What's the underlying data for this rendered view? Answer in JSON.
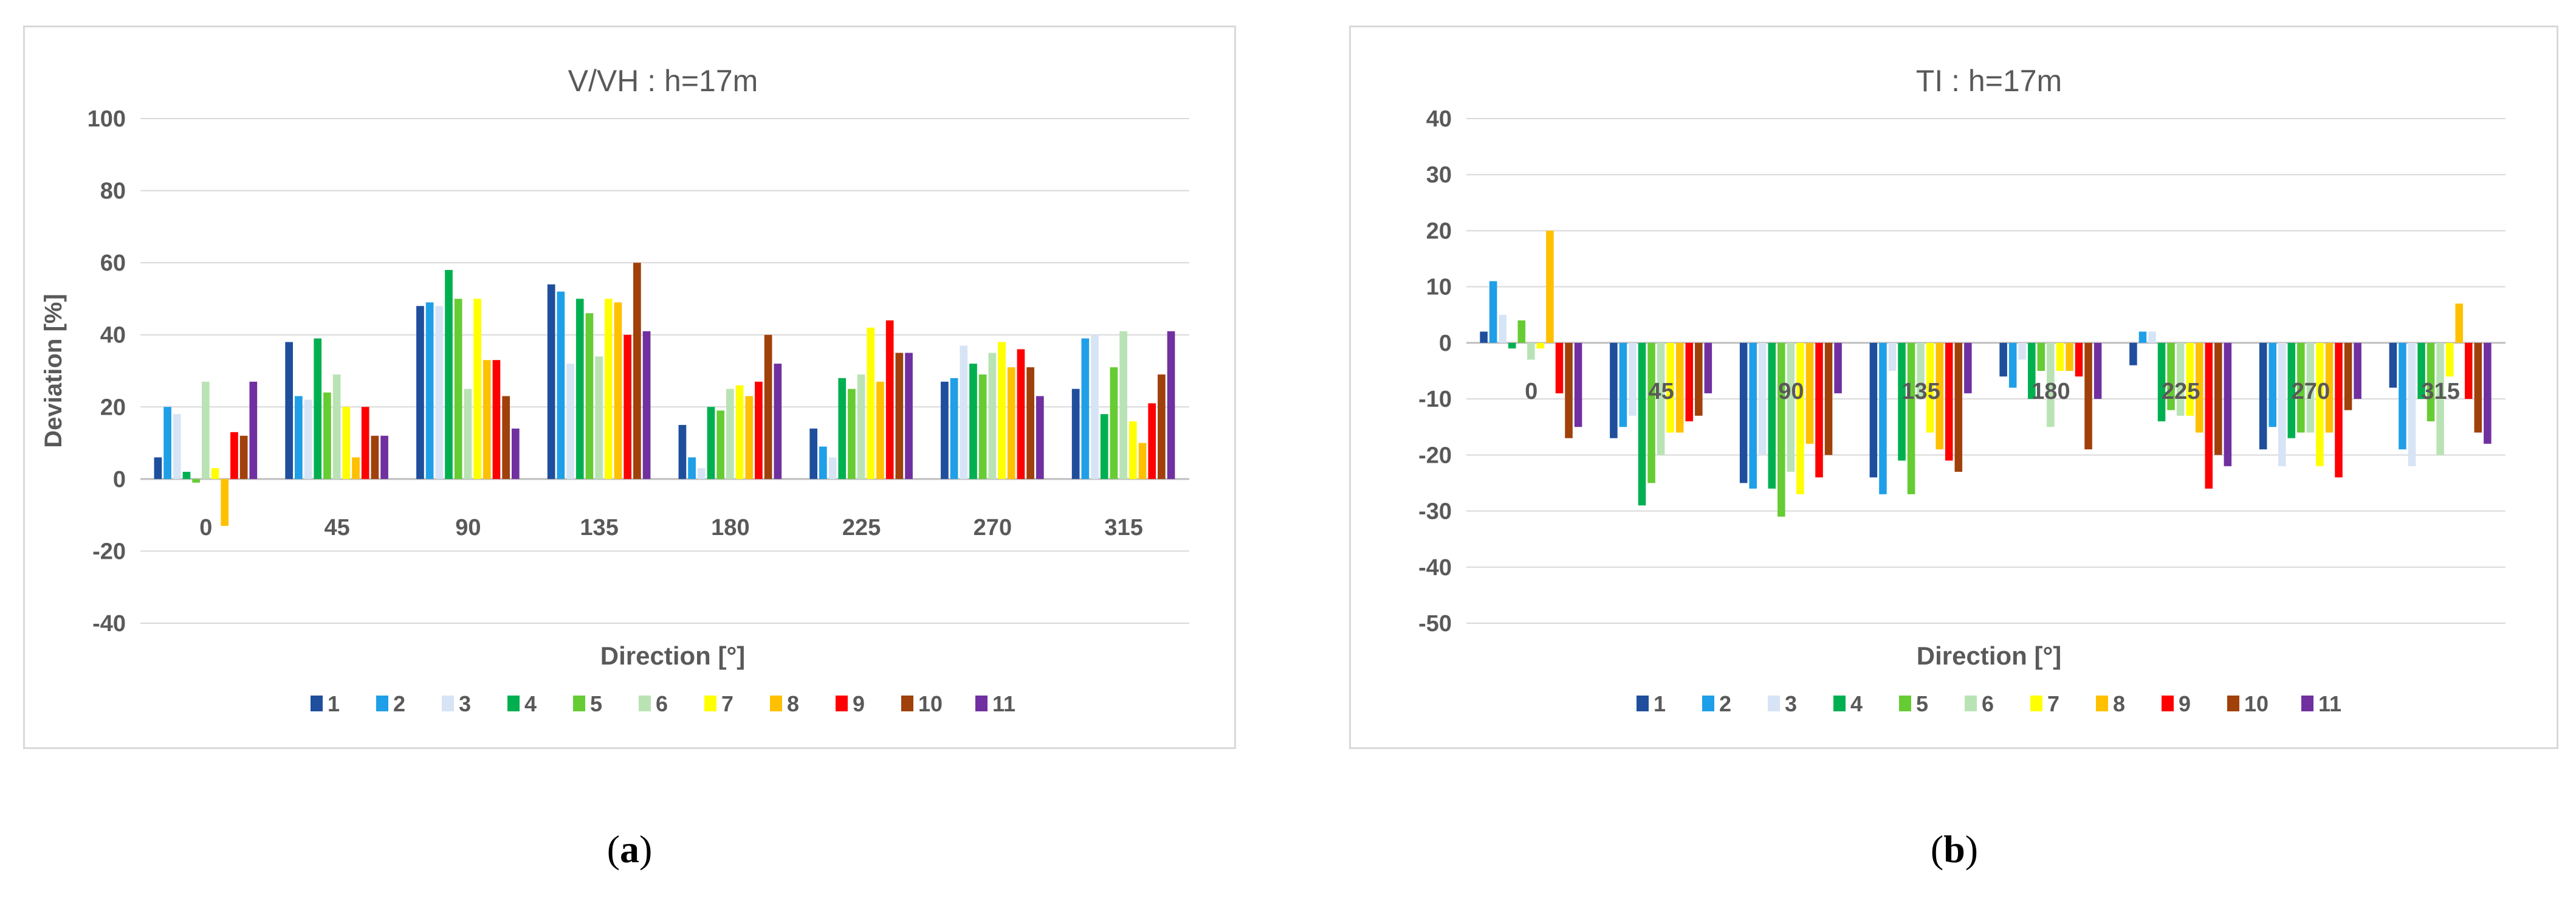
{
  "captions": [
    "a",
    "b"
  ],
  "legend_colors": [
    "#1f4e9c",
    "#1e9fe8",
    "#d6e4f5",
    "#00b050",
    "#66cc33",
    "#b9e3b4",
    "#ffff00",
    "#ffc000",
    "#ff0000",
    "#a0400a",
    "#7030a0"
  ],
  "chart_data": [
    {
      "type": "bar",
      "title": "V/VH : h=17m",
      "xlabel": "Direction [°]",
      "ylabel": "Deviation [%]",
      "ylim": [
        -40,
        100
      ],
      "yticks": [
        100,
        80,
        60,
        40,
        20,
        0,
        -20,
        -40
      ],
      "grid": true,
      "legend_position": "bottom",
      "categories": [
        "0",
        "45",
        "90",
        "135",
        "180",
        "225",
        "270",
        "315"
      ],
      "series": [
        {
          "name": "1",
          "values": [
            6,
            38,
            48,
            54,
            15,
            14,
            27,
            25
          ]
        },
        {
          "name": "2",
          "values": [
            20,
            23,
            49,
            52,
            6,
            9,
            28,
            39
          ]
        },
        {
          "name": "3",
          "values": [
            18,
            22,
            48,
            32,
            3,
            6,
            37,
            40
          ]
        },
        {
          "name": "4",
          "values": [
            2,
            39,
            58,
            50,
            20,
            28,
            32,
            18
          ]
        },
        {
          "name": "5",
          "values": [
            -1,
            24,
            50,
            46,
            19,
            25,
            29,
            31
          ]
        },
        {
          "name": "6",
          "values": [
            27,
            29,
            25,
            34,
            25,
            29,
            35,
            41
          ]
        },
        {
          "name": "7",
          "values": [
            3,
            20,
            50,
            50,
            26,
            42,
            38,
            16
          ]
        },
        {
          "name": "8",
          "values": [
            -13,
            6,
            33,
            49,
            23,
            27,
            31,
            10
          ]
        },
        {
          "name": "9",
          "values": [
            13,
            20,
            33,
            40,
            27,
            44,
            36,
            21
          ]
        },
        {
          "name": "10",
          "values": [
            12,
            12,
            23,
            60,
            40,
            35,
            31,
            29
          ]
        },
        {
          "name": "11",
          "values": [
            27,
            12,
            14,
            41,
            32,
            35,
            23,
            41
          ]
        }
      ]
    },
    {
      "type": "bar",
      "title": "TI : h=17m",
      "xlabel": "Direction [°]",
      "ylabel": "",
      "ylim": [
        -50,
        40
      ],
      "yticks": [
        40,
        30,
        20,
        10,
        0,
        -10,
        -20,
        -30,
        -40,
        -50
      ],
      "grid": true,
      "legend_position": "bottom",
      "categories": [
        "0",
        "45",
        "90",
        "135",
        "180",
        "225",
        "270",
        "315"
      ],
      "series": [
        {
          "name": "1",
          "values": [
            2,
            -17,
            -25,
            -24,
            -6,
            -4,
            -19,
            -8
          ]
        },
        {
          "name": "2",
          "values": [
            11,
            -15,
            -26,
            -27,
            -8,
            2,
            -15,
            -19
          ]
        },
        {
          "name": "3",
          "values": [
            5,
            -13,
            -20,
            -5,
            -3,
            2,
            -22,
            -22
          ]
        },
        {
          "name": "4",
          "values": [
            -1,
            -29,
            -26,
            -21,
            -10,
            -14,
            -17,
            -10
          ]
        },
        {
          "name": "5",
          "values": [
            4,
            -25,
            -31,
            -27,
            -5,
            -12,
            -16,
            -14
          ]
        },
        {
          "name": "6",
          "values": [
            -3,
            -20,
            -23,
            -10,
            -15,
            -13,
            -16,
            -20
          ]
        },
        {
          "name": "7",
          "values": [
            -1,
            -16,
            -27,
            -16,
            -5,
            -13,
            -22,
            -6
          ]
        },
        {
          "name": "8",
          "values": [
            20,
            -16,
            -18,
            -19,
            -5,
            -16,
            -16,
            7
          ]
        },
        {
          "name": "9",
          "values": [
            -9,
            -14,
            -24,
            -21,
            -6,
            -26,
            -24,
            -10
          ]
        },
        {
          "name": "10",
          "values": [
            -17,
            -13,
            -20,
            -23,
            -19,
            -20,
            -12,
            -16
          ]
        },
        {
          "name": "11",
          "values": [
            -15,
            -9,
            -9,
            -9,
            -10,
            -22,
            -10,
            -18
          ]
        }
      ]
    }
  ]
}
